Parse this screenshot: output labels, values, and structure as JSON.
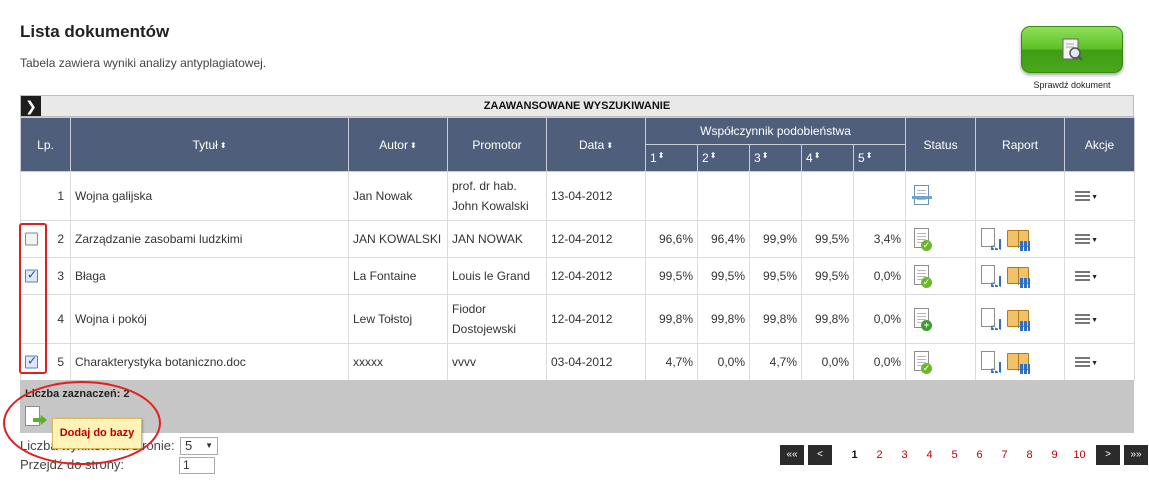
{
  "page": {
    "title": "Lista dokumentów",
    "subtitle": "Tabela zawiera wyniki analizy antyplagiatowej.",
    "check_button_label": "Sprawdź dokument"
  },
  "advanced_search": {
    "label": "ZAAWANSOWANE WYSZUKIWANIE",
    "toggle_icon": "arrow-right-icon"
  },
  "table": {
    "headers": {
      "lp": "Lp.",
      "title": "Tytuł",
      "author": "Autor",
      "promotor": "Promotor",
      "date": "Data",
      "similarity": "Współczynnik podobieństwa",
      "similarity_cols": [
        "1",
        "2",
        "3",
        "4",
        "5"
      ],
      "status": "Status",
      "report": "Raport",
      "actions": "Akcje"
    },
    "rows": [
      {
        "lp": "1",
        "checkbox": "none",
        "title": "Wojna galijska",
        "author": "Jan Nowak",
        "promotor": "prof. dr hab. John Kowalski",
        "date": "13-04-2012",
        "c1": "",
        "c2": "",
        "c3": "",
        "c4": "",
        "c5": "",
        "status_icon": "document-scan-icon",
        "has_report": false
      },
      {
        "lp": "2",
        "checkbox": "unchecked",
        "title": "Zarządzanie zasobami ludzkimi",
        "author": "JAN KOWALSKI",
        "promotor": "JAN NOWAK",
        "date": "12-04-2012",
        "c1": "96,6%",
        "c2": "96,4%",
        "c3": "99,9%",
        "c4": "99,5%",
        "c5": "3,4%",
        "status_icon": "document-ok-icon",
        "has_report": true
      },
      {
        "lp": "3",
        "checkbox": "checked",
        "title": "Błaga",
        "author": "La Fontaine",
        "promotor": "Louis le Grand",
        "date": "12-04-2012",
        "c1": "99,5%",
        "c2": "99,5%",
        "c3": "99,5%",
        "c4": "99,5%",
        "c5": "0,0%",
        "status_icon": "document-ok-icon",
        "has_report": true
      },
      {
        "lp": "4",
        "checkbox": "none",
        "title": "Wojna i pokój",
        "author": "Lew Tołstoj",
        "promotor": "Fiodor Dostojewski",
        "date": "12-04-2012",
        "c1": "99,8%",
        "c2": "99,8%",
        "c3": "99,8%",
        "c4": "99,8%",
        "c5": "0,0%",
        "status_icon": "document-add-icon",
        "has_report": true
      },
      {
        "lp": "5",
        "checkbox": "checked",
        "title": "Charakterystyka botaniczno.doc",
        "author": "xxxxx",
        "promotor": "vvvv",
        "date": "03-04-2012",
        "c1": "4,7%",
        "c2": "0,0%",
        "c3": "4,7%",
        "c4": "0,0%",
        "c5": "0,0%",
        "status_icon": "document-ok-icon",
        "has_report": true
      }
    ]
  },
  "footer": {
    "selection_count": "Liczba zaznaczeń: 2",
    "tooltip": "Dodaj do bazy",
    "per_page_label": "Liczba wyników na stronie:",
    "per_page_value": "5",
    "goto_label": "Przejdź do strony:",
    "goto_value": "1"
  },
  "pagination": {
    "first": "««",
    "prev": "<",
    "pages": [
      "1",
      "2",
      "3",
      "4",
      "5",
      "6",
      "7",
      "8",
      "9",
      "10"
    ],
    "current": "1",
    "next": ">",
    "last": "»»"
  },
  "colors": {
    "header_bg": "#4f5f7b",
    "accent_green": "#5ec127",
    "annotation_red": "#e02020",
    "page_link_red": "#c00000"
  }
}
